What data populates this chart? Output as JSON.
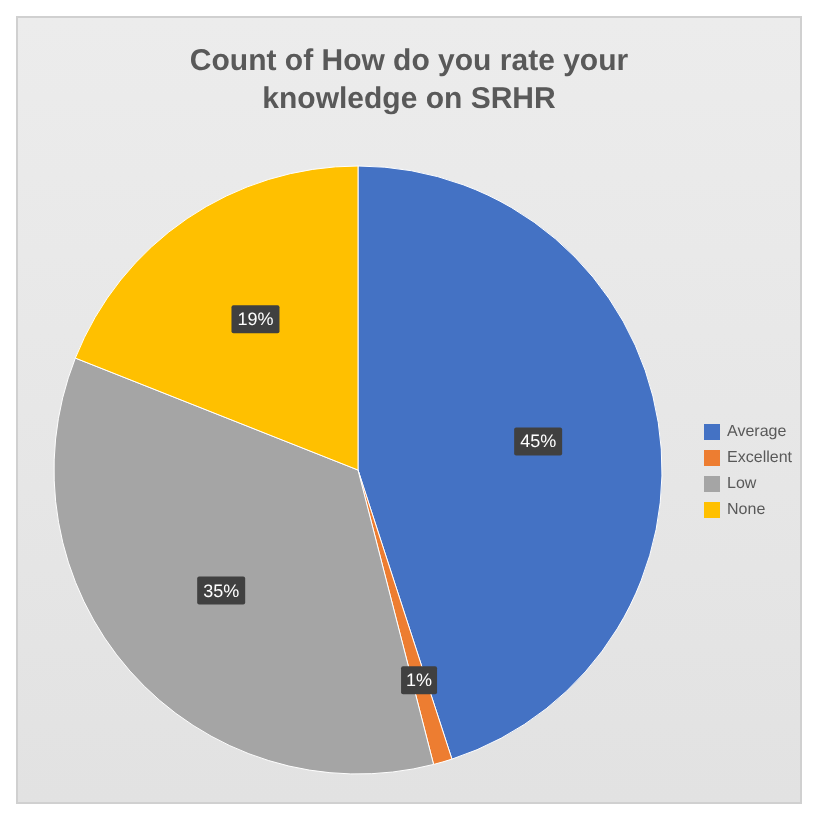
{
  "chart_data": {
    "type": "pie",
    "title": "Count of How do you rate your knowledge on SRHR",
    "categories": [
      "Average",
      "Excellent",
      "Low",
      "None"
    ],
    "values": [
      45,
      1,
      35,
      19
    ],
    "colors": [
      "#4472c4",
      "#ed7d31",
      "#a5a5a5",
      "#ffc000"
    ],
    "value_labels": [
      "45%",
      "1%",
      "35%",
      "19%"
    ],
    "legend": "right"
  }
}
